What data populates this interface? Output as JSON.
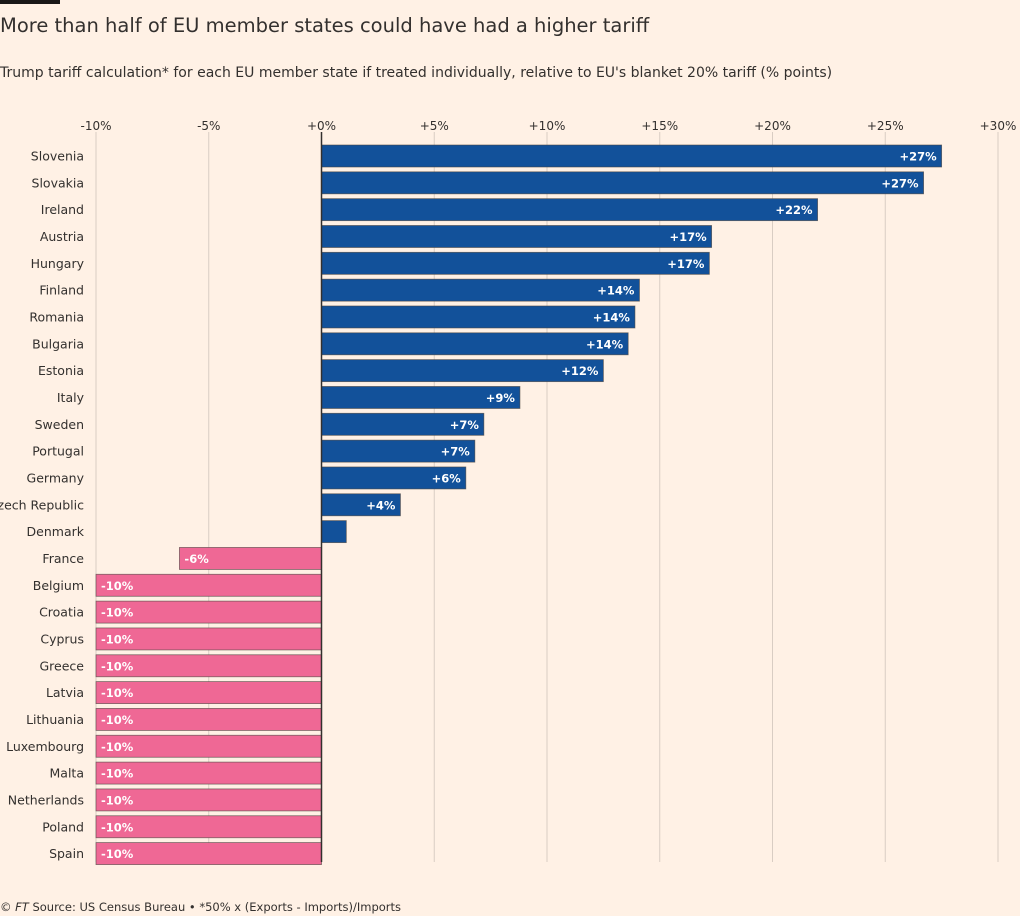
{
  "title": "More than half of EU member states could have had a higher tariff",
  "subtitle": "Trump tariff calculation* for each EU member state if treated individually, relative to EU's blanket 20% tariff (% points)",
  "footer": {
    "copyright": "© ",
    "brand": "FT",
    "source": " Source: US Census Bureau • *50% x (Exports - Imports)/Imports"
  },
  "colors": {
    "positive": "#12519a",
    "negative": "#ef6895",
    "gridline": "#d9cdc3",
    "axis": "#33302e",
    "background": "#fff1e5"
  },
  "chart_data": {
    "type": "bar",
    "orientation": "horizontal",
    "xlim": [
      -10,
      30
    ],
    "ticks": [
      -10,
      -5,
      0,
      5,
      10,
      15,
      20,
      25,
      30
    ],
    "tick_labels": [
      "-10%",
      "-5%",
      "+0%",
      "+5%",
      "+10%",
      "+15%",
      "+20%",
      "+25%",
      "+30%"
    ],
    "grid": true,
    "categories": [
      "Slovenia",
      "Slovakia",
      "Ireland",
      "Austria",
      "Hungary",
      "Finland",
      "Romania",
      "Bulgaria",
      "Estonia",
      "Italy",
      "Sweden",
      "Portugal",
      "Germany",
      "Czech Republic",
      "Denmark",
      "France",
      "Belgium",
      "Croatia",
      "Cyprus",
      "Greece",
      "Latvia",
      "Lithuania",
      "Luxembourg",
      "Malta",
      "Netherlands",
      "Poland",
      "Spain"
    ],
    "values": [
      27.5,
      26.7,
      22,
      17.3,
      17.2,
      14.1,
      13.9,
      13.6,
      12.5,
      8.8,
      7.2,
      6.8,
      6.4,
      3.5,
      1.1,
      -6.3,
      -10,
      -10,
      -10,
      -10,
      -10,
      -10,
      -10,
      -10,
      -10,
      -10,
      -10
    ],
    "data_labels": [
      "+27%",
      "+27%",
      "+22%",
      "+17%",
      "+17%",
      "+14%",
      "+14%",
      "+14%",
      "+12%",
      "+9%",
      "+7%",
      "+7%",
      "+6%",
      "+4%",
      "",
      "-6%",
      "-10%",
      "-10%",
      "-10%",
      "-10%",
      "-10%",
      "-10%",
      "-10%",
      "-10%",
      "-10%",
      "-10%",
      "-10%"
    ]
  }
}
